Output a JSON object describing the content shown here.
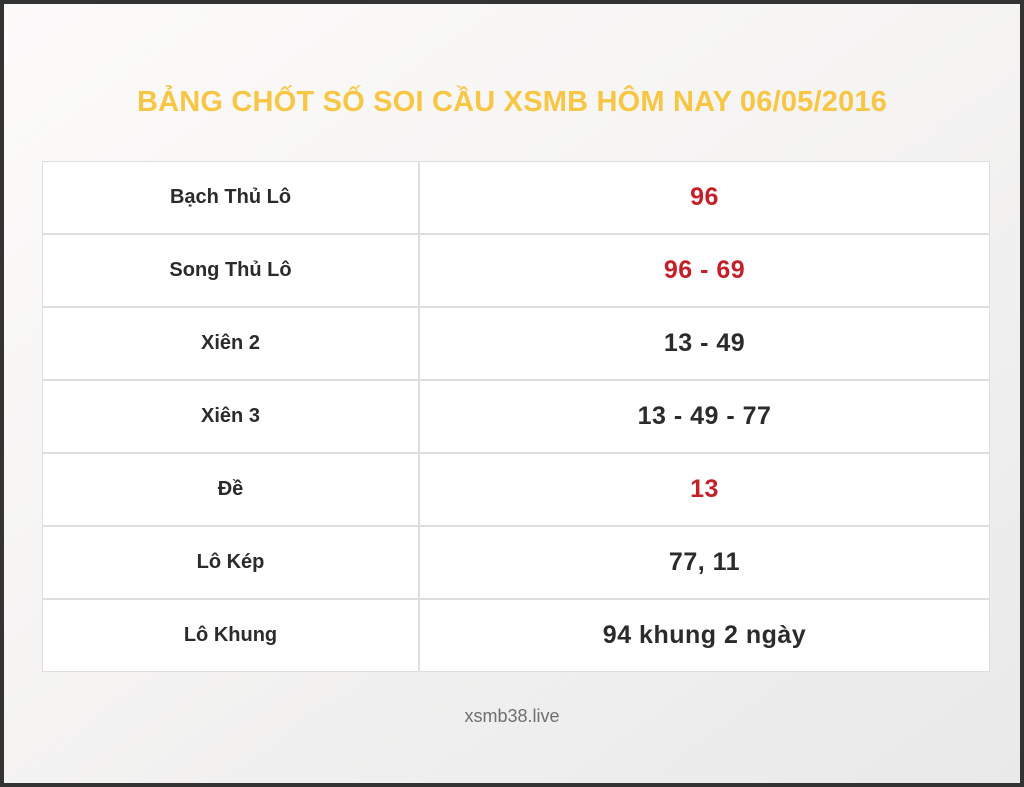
{
  "page": {
    "title": "BẢNG CHỐT SỐ SOI CẦU XSMB HÔM NAY 06/05/2016",
    "footer": "xsmb38.live"
  },
  "colors": {
    "title_yellow": "#f6c644",
    "value_red": "#c4202a",
    "text_dark": "#2b2b2b",
    "table_border": "#dedede",
    "outer_border": "#333333"
  },
  "table": {
    "rows": [
      {
        "label": "Bạch Thủ Lô",
        "value": "96",
        "highlight": true
      },
      {
        "label": "Song Thủ Lô",
        "value": "96 - 69",
        "highlight": true
      },
      {
        "label": "Xiên 2",
        "value": "13 - 49",
        "highlight": false
      },
      {
        "label": "Xiên 3",
        "value": "13 - 49 - 77",
        "highlight": false
      },
      {
        "label": "Đề",
        "value": "13",
        "highlight": true
      },
      {
        "label": "Lô Kép",
        "value": "77, 11",
        "highlight": false
      },
      {
        "label": "Lô Khung",
        "value": "94 khung 2 ngày",
        "highlight": false
      }
    ]
  }
}
